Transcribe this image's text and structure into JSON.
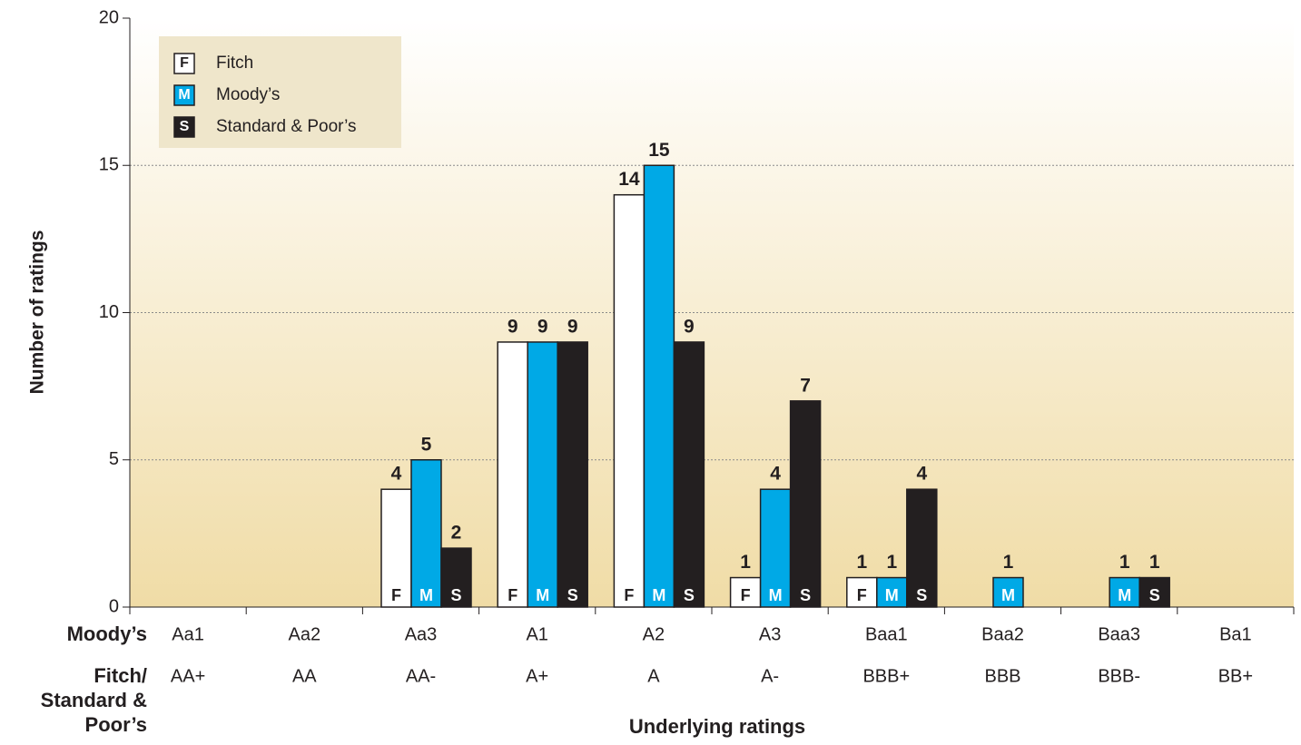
{
  "chart_data": {
    "type": "bar",
    "y_label": "Number of ratings",
    "x_label": "Underlying ratings",
    "category_label": "Moody’s",
    "categories": [
      "Aa1",
      "Aa2",
      "Aa3",
      "A1",
      "A2",
      "A3",
      "Baa1",
      "Baa2",
      "Baa3",
      "Ba1"
    ],
    "category2_label": [
      "Fitch/",
      "Standard &",
      "Poor’s"
    ],
    "categories2": [
      "AA+",
      "AA",
      "AA-",
      "A+",
      "A",
      "A-",
      "BBB+",
      "BBB",
      "BBB-",
      "BB+"
    ],
    "series": [
      {
        "name": "Fitch",
        "marker": "F",
        "color": "#ffffff",
        "values": [
          null,
          null,
          4,
          9,
          14,
          1,
          1,
          null,
          null,
          null
        ]
      },
      {
        "name": "Moody’s",
        "marker": "M",
        "color": "#00a9e6",
        "values": [
          null,
          null,
          5,
          9,
          15,
          4,
          1,
          1,
          1,
          null
        ]
      },
      {
        "name": "Standard & Poor’s",
        "marker": "S",
        "color": "#231f20",
        "values": [
          null,
          null,
          2,
          9,
          9,
          7,
          4,
          null,
          1,
          null
        ]
      }
    ],
    "ylim": [
      0,
      20
    ],
    "yticks": [
      0,
      5,
      10,
      15,
      20
    ],
    "grid": true,
    "legend": "upper left"
  }
}
